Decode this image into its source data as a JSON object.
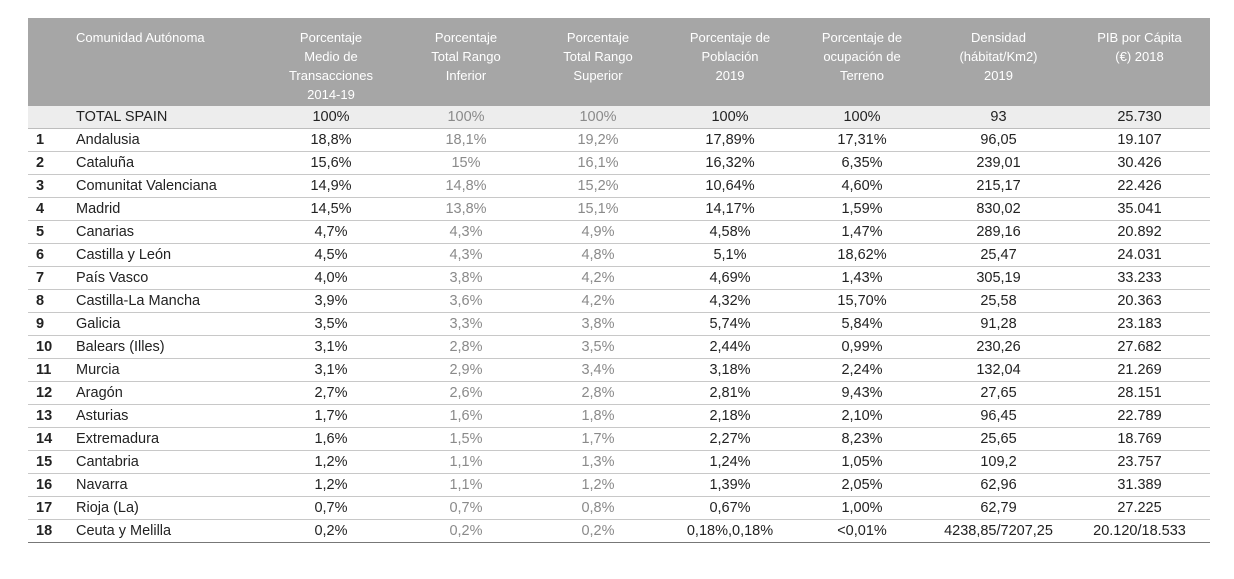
{
  "table": {
    "headers": [
      "",
      "Comunidad Autónoma",
      "Porcentaje\nMedio de\nTransacciones\n2014-19",
      "Porcentaje\nTotal Rango\nInferior",
      "Porcentaje\nTotal Rango\nSuperior",
      "Porcentaje de\nPoblación\n2019",
      "Porcentaje de\nocupación de\nTerreno",
      "Densidad\n(hábitat/Km2)\n2019",
      "PIB por Cápita\n(€) 2018"
    ],
    "total": {
      "label": "TOTAL SPAIN",
      "values": [
        "100%",
        "100%",
        "100%",
        "100%",
        "100%",
        "93",
        "25.730"
      ]
    },
    "rows": [
      {
        "n": "1",
        "region": "Andalusia",
        "values": [
          "18,8%",
          "18,1%",
          "19,2%",
          "17,89%",
          "17,31%",
          "96,05",
          "19.107"
        ]
      },
      {
        "n": "2",
        "region": "Cataluña",
        "values": [
          "15,6%",
          "15%",
          "16,1%",
          "16,32%",
          "6,35%",
          "239,01",
          "30.426"
        ]
      },
      {
        "n": "3",
        "region": "Comunitat Valenciana",
        "values": [
          "14,9%",
          "14,8%",
          "15,2%",
          "10,64%",
          "4,60%",
          "215,17",
          "22.426"
        ]
      },
      {
        "n": "4",
        "region": "Madrid",
        "values": [
          "14,5%",
          "13,8%",
          "15,1%",
          "14,17%",
          "1,59%",
          "830,02",
          "35.041"
        ]
      },
      {
        "n": "5",
        "region": "Canarias",
        "values": [
          "4,7%",
          "4,3%",
          "4,9%",
          "4,58%",
          "1,47%",
          "289,16",
          "20.892"
        ]
      },
      {
        "n": "6",
        "region": "Castilla y León",
        "values": [
          "4,5%",
          "4,3%",
          "4,8%",
          "5,1%",
          "18,62%",
          "25,47",
          "24.031"
        ]
      },
      {
        "n": "7",
        "region": "País Vasco",
        "values": [
          "4,0%",
          "3,8%",
          "4,2%",
          "4,69%",
          "1,43%",
          "305,19",
          "33.233"
        ]
      },
      {
        "n": "8",
        "region": "Castilla-La Mancha",
        "values": [
          "3,9%",
          "3,6%",
          "4,2%",
          "4,32%",
          "15,70%",
          "25,58",
          "20.363"
        ]
      },
      {
        "n": "9",
        "region": "Galicia",
        "values": [
          "3,5%",
          "3,3%",
          "3,8%",
          "5,74%",
          "5,84%",
          "91,28",
          "23.183"
        ]
      },
      {
        "n": "10",
        "region": "Balears (Illes)",
        "values": [
          "3,1%",
          "2,8%",
          "3,5%",
          "2,44%",
          "0,99%",
          "230,26",
          "27.682"
        ]
      },
      {
        "n": "11",
        "region": "Murcia",
        "values": [
          "3,1%",
          "2,9%",
          "3,4%",
          "3,18%",
          "2,24%",
          "132,04",
          "21.269"
        ]
      },
      {
        "n": "12",
        "region": "Aragón",
        "values": [
          "2,7%",
          "2,6%",
          "2,8%",
          "2,81%",
          "9,43%",
          "27,65",
          "28.151"
        ]
      },
      {
        "n": "13",
        "region": "Asturias",
        "values": [
          "1,7%",
          "1,6%",
          "1,8%",
          "2,18%",
          "2,10%",
          "96,45",
          "22.789"
        ]
      },
      {
        "n": "14",
        "region": "Extremadura",
        "values": [
          "1,6%",
          "1,5%",
          "1,7%",
          "2,27%",
          "8,23%",
          "25,65",
          "18.769"
        ]
      },
      {
        "n": "15",
        "region": "Cantabria",
        "values": [
          "1,2%",
          "1,1%",
          "1,3%",
          "1,24%",
          "1,05%",
          "109,2",
          "23.757"
        ]
      },
      {
        "n": "16",
        "region": "Navarra",
        "values": [
          "1,2%",
          "1,1%",
          "1,2%",
          "1,39%",
          "2,05%",
          "62,96",
          "31.389"
        ]
      },
      {
        "n": "17",
        "region": "Rioja (La)",
        "values": [
          "0,7%",
          "0,7%",
          "0,8%",
          "0,67%",
          "1,00%",
          "62,79",
          "27.225"
        ]
      },
      {
        "n": "18",
        "region": "Ceuta y Melilla",
        "values": [
          "0,2%",
          "0,2%",
          "0,2%",
          "0,18%,0,18%",
          "<0,01%",
          "4238,85/7207,25",
          "20.120/18.533"
        ]
      }
    ]
  }
}
